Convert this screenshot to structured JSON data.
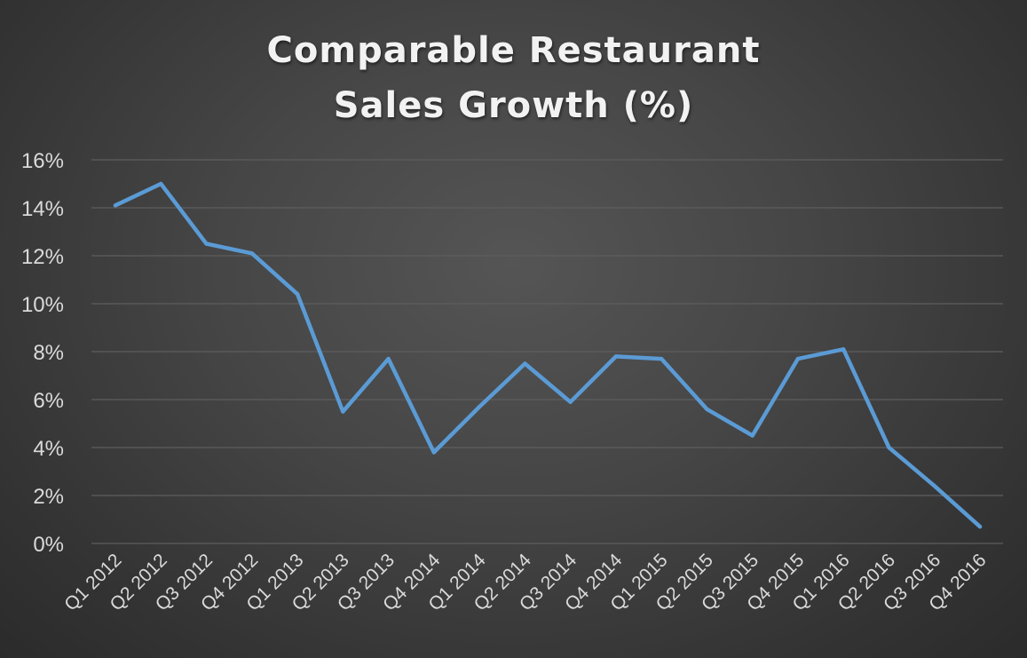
{
  "chart_data": {
    "type": "line",
    "title": "Comparable Restaurant Sales Growth (%)",
    "title_lines": [
      "Comparable Restaurant",
      "Sales Growth (%)"
    ],
    "xlabel": "",
    "ylabel": "",
    "categories": [
      "Q1 2012",
      "Q2 2012",
      "Q3 2012",
      "Q4 2012",
      "Q1 2013",
      "Q2 2013",
      "Q3 2013",
      "Q4 2014",
      "Q1 2014",
      "Q2 2014",
      "Q3 2014",
      "Q4 2014",
      "Q1 2015",
      "Q2 2015",
      "Q3 2015",
      "Q4 2015",
      "Q1 2016",
      "Q2 2016",
      "Q3 2016",
      "Q4 2016"
    ],
    "series": [
      {
        "values": [
          14.1,
          15.0,
          12.5,
          12.1,
          10.4,
          5.5,
          7.7,
          3.8,
          5.7,
          7.5,
          5.9,
          7.8,
          7.7,
          5.6,
          4.5,
          7.7,
          8.1,
          4.0,
          2.4,
          0.7
        ],
        "color": "#5b9bd5"
      }
    ],
    "ylim": [
      0,
      16
    ],
    "y_ticks": [
      0,
      2,
      4,
      6,
      8,
      10,
      12,
      14,
      16
    ],
    "y_tick_labels": [
      "0%",
      "2%",
      "4%",
      "6%",
      "8%",
      "10%",
      "12%",
      "14%",
      "16%"
    ],
    "grid": true,
    "legend": "none",
    "colors": {
      "background": "#404040",
      "gridline": "#5e5e5e",
      "text": "#dadada",
      "line": "#5b9bd5"
    }
  }
}
